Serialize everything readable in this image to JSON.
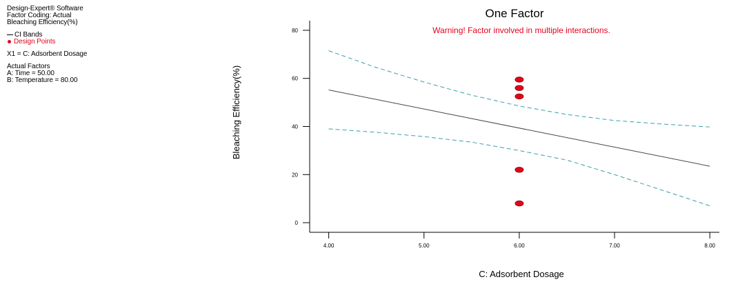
{
  "panel": {
    "software": "Design-Expert® Software",
    "factor_coding": "Factor Coding: Actual",
    "response": "Bleaching Efficiency(%)",
    "legend_ci": "CI Bands",
    "legend_points": "Design Points",
    "x1_label": "X1 = C: Adsorbent Dosage",
    "actual_factors_title": "Actual Factors",
    "factor_a": "A: Time = 50.00",
    "factor_b": "B: Temperature = 80.00"
  },
  "colors": {
    "design_points": "#e8001c",
    "ci_bands": "#3a9ea8",
    "fit_line": "#444444",
    "warning": "#e8001c"
  },
  "chart_data": {
    "type": "line",
    "title": "One Factor",
    "warning": "Warning! Factor involved in multiple interactions.",
    "xlabel": "C: Adsorbent Dosage",
    "ylabel": "Bleaching Efficiency(%)",
    "xlim": [
      3.8,
      8.1
    ],
    "ylim": [
      -4,
      84
    ],
    "x_ticks": [
      4,
      5,
      6,
      7,
      8
    ],
    "x_tick_labels": [
      "4.00",
      "5.00",
      "6.00",
      "7.00",
      "8.00"
    ],
    "y_ticks": [
      0,
      20,
      40,
      60,
      80
    ],
    "y_tick_labels": [
      "0",
      "20",
      "40",
      "60",
      "80"
    ],
    "grid": false,
    "fit": {
      "x": [
        4,
        8
      ],
      "y": [
        55.2,
        23.5
      ]
    },
    "ci_upper": {
      "x": [
        4,
        4.5,
        5,
        5.5,
        6,
        6.5,
        7,
        7.5,
        8
      ],
      "y": [
        71.5,
        64.5,
        58.5,
        53,
        48.5,
        45,
        42.5,
        41,
        39.8
      ]
    },
    "ci_lower": {
      "x": [
        4,
        4.5,
        5,
        5.5,
        6,
        6.5,
        7,
        7.5,
        8
      ],
      "y": [
        39,
        37.6,
        35.8,
        33.5,
        30,
        26,
        20,
        13.5,
        7
      ]
    },
    "design_points": {
      "x": [
        6,
        6,
        6,
        6,
        6
      ],
      "y": [
        59.5,
        56,
        52.5,
        22,
        8
      ]
    }
  }
}
